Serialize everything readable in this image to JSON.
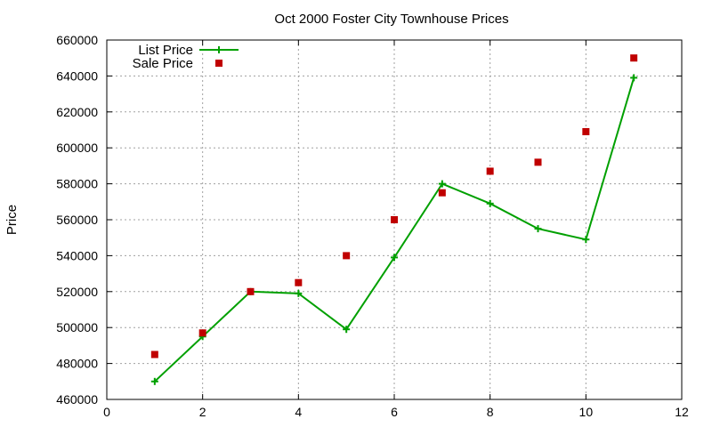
{
  "chart_data": {
    "type": "line",
    "title": "Oct 2000 Foster City Townhouse Prices",
    "xlabel": "",
    "ylabel": "Price",
    "xlim": [
      0,
      12
    ],
    "ylim": [
      460000,
      660000
    ],
    "xticks": [
      0,
      2,
      4,
      6,
      8,
      10,
      12
    ],
    "yticks": [
      460000,
      480000,
      500000,
      520000,
      540000,
      560000,
      580000,
      600000,
      620000,
      640000,
      660000
    ],
    "grid": true,
    "legend_position": "top-left",
    "series": [
      {
        "name": "List Price",
        "style": "line-with-plus-markers",
        "color": "#00a000",
        "x": [
          1,
          2,
          3,
          4,
          5,
          6,
          7,
          8,
          9,
          10,
          11
        ],
        "y": [
          470000,
          495000,
          520000,
          519000,
          499000,
          539000,
          580000,
          569000,
          555000,
          549000,
          639000
        ]
      },
      {
        "name": "Sale Price",
        "style": "square-markers",
        "color": "#c00000",
        "x": [
          1,
          2,
          3,
          4,
          5,
          6,
          7,
          8,
          9,
          10,
          11
        ],
        "y": [
          485000,
          497000,
          520000,
          525000,
          540000,
          560000,
          575000,
          587000,
          592000,
          609000,
          650000
        ]
      }
    ]
  }
}
